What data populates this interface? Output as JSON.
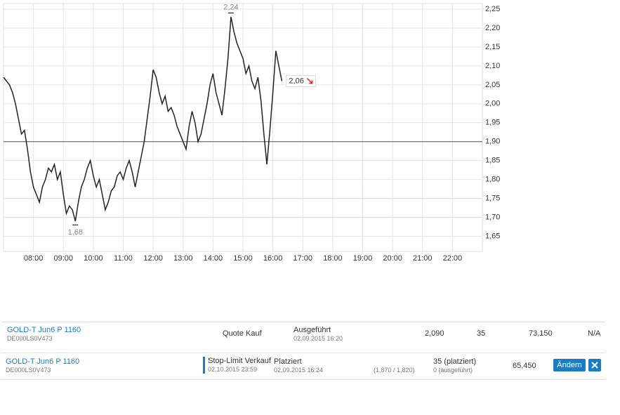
{
  "chart_data": {
    "type": "line",
    "color": "#222222",
    "grid": true,
    "x": [
      7.0,
      7.1,
      7.2,
      7.3,
      7.4,
      7.5,
      7.6,
      7.7,
      7.8,
      7.9,
      8.0,
      8.1,
      8.2,
      8.3,
      8.4,
      8.5,
      8.6,
      8.7,
      8.8,
      8.9,
      9.0,
      9.1,
      9.2,
      9.3,
      9.4,
      9.5,
      9.6,
      9.7,
      9.8,
      9.9,
      10.0,
      10.1,
      10.2,
      10.3,
      10.4,
      10.5,
      10.6,
      10.7,
      10.8,
      10.9,
      11.0,
      11.1,
      11.2,
      11.3,
      11.4,
      11.5,
      11.6,
      11.7,
      11.8,
      11.9,
      12.0,
      12.1,
      12.2,
      12.3,
      12.4,
      12.5,
      12.6,
      12.7,
      12.8,
      12.9,
      13.0,
      13.1,
      13.2,
      13.3,
      13.4,
      13.5,
      13.6,
      13.7,
      13.8,
      13.9,
      14.0,
      14.1,
      14.2,
      14.3,
      14.4,
      14.5,
      14.6,
      14.7,
      14.8,
      14.9,
      15.0,
      15.1,
      15.2,
      15.3,
      15.4,
      15.5,
      15.6,
      15.7,
      15.8,
      15.9,
      16.0,
      16.1,
      16.2,
      16.3
    ],
    "values": [
      2.07,
      2.06,
      2.05,
      2.03,
      2.0,
      1.96,
      1.92,
      1.93,
      1.88,
      1.82,
      1.78,
      1.76,
      1.74,
      1.78,
      1.8,
      1.83,
      1.82,
      1.84,
      1.8,
      1.82,
      1.76,
      1.71,
      1.73,
      1.72,
      1.69,
      1.74,
      1.78,
      1.8,
      1.83,
      1.85,
      1.81,
      1.78,
      1.8,
      1.76,
      1.72,
      1.74,
      1.77,
      1.78,
      1.81,
      1.82,
      1.8,
      1.83,
      1.85,
      1.82,
      1.78,
      1.82,
      1.86,
      1.9,
      1.96,
      2.02,
      2.09,
      2.07,
      2.03,
      2.0,
      2.02,
      1.98,
      1.99,
      1.97,
      1.94,
      1.92,
      1.9,
      1.88,
      1.94,
      1.98,
      1.95,
      1.9,
      1.92,
      1.96,
      2.0,
      2.05,
      2.08,
      2.03,
      2.0,
      1.97,
      2.04,
      2.12,
      2.23,
      2.19,
      2.16,
      2.14,
      2.12,
      2.08,
      2.1,
      2.06,
      2.04,
      2.07,
      2.01,
      1.92,
      1.84,
      1.93,
      2.03,
      2.14,
      2.1,
      2.06
    ],
    "xlim": [
      7,
      23
    ],
    "xticks": [
      {
        "value": 8,
        "label": "08:00"
      },
      {
        "value": 9,
        "label": "09:00"
      },
      {
        "value": 10,
        "label": "10:00"
      },
      {
        "value": 11,
        "label": "11:00"
      },
      {
        "value": 12,
        "label": "12:00"
      },
      {
        "value": 13,
        "label": "13:00"
      },
      {
        "value": 14,
        "label": "14:00"
      },
      {
        "value": 15,
        "label": "15:00"
      },
      {
        "value": 16,
        "label": "16:00"
      },
      {
        "value": 17,
        "label": "17:00"
      },
      {
        "value": 18,
        "label": "18:00"
      },
      {
        "value": 19,
        "label": "19:00"
      },
      {
        "value": 20,
        "label": "20:00"
      },
      {
        "value": 21,
        "label": "21:00"
      },
      {
        "value": 22,
        "label": "22:00"
      }
    ],
    "ylim": [
      1.61,
      2.265
    ],
    "yticks": [
      {
        "value": 1.65,
        "label": "1,65"
      },
      {
        "value": 1.7,
        "label": "1,70"
      },
      {
        "value": 1.75,
        "label": "1,75"
      },
      {
        "value": 1.8,
        "label": "1,80"
      },
      {
        "value": 1.85,
        "label": "1,85"
      },
      {
        "value": 1.9,
        "label": "1,90"
      },
      {
        "value": 1.95,
        "label": "1,95"
      },
      {
        "value": 2.0,
        "label": "2,00"
      },
      {
        "value": 2.05,
        "label": "2,05"
      },
      {
        "value": 2.1,
        "label": "2,10"
      },
      {
        "value": 2.15,
        "label": "2,15"
      },
      {
        "value": 2.2,
        "label": "2,20"
      },
      {
        "value": 2.25,
        "label": "2,25"
      }
    ],
    "reference_line": 1.9,
    "high": {
      "x": 14.6,
      "value": 2.24,
      "label": "2,24"
    },
    "low": {
      "x": 9.4,
      "value": 1.68,
      "label": "1,68"
    },
    "last": {
      "value": 2.06,
      "label": "2,06"
    }
  },
  "orders": [
    {
      "name": "GOLD-T Jun6 P 1160",
      "isin": "DE000LS0V473",
      "type": "Quote Kauf",
      "status": "Ausgeführt",
      "date": "02.09.2015 16:20",
      "price": "2,090",
      "quantity": "35",
      "total": "73,150",
      "extra": "N/A"
    },
    {
      "name": "GOLD-T Jun6 P 1160",
      "isin": "DE000LS0V473",
      "type": "Stop-Limit Verkauf",
      "validity": "02.10.2015 23:59",
      "status": "Platziert",
      "date": "02.09.2015 16:24",
      "limits": "(1,870 / 1,820)",
      "placed": "35 (platziert)",
      "executed": "0 (ausgeführt)",
      "total": "65,450",
      "button": "Ändern"
    }
  ]
}
